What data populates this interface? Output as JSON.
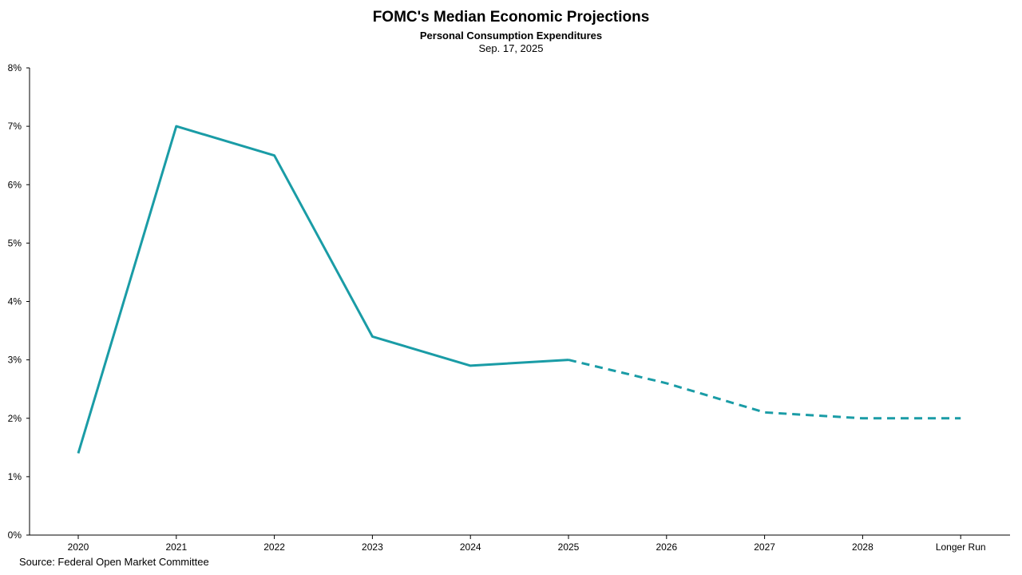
{
  "chart_data": {
    "type": "line",
    "title": "FOMC's Median Economic Projections",
    "subtitle": "Personal Consumption Expenditures",
    "date": "Sep. 17, 2025",
    "source": "Source: Federal Open Market Committee",
    "categories": [
      "2020",
      "2021",
      "2022",
      "2023",
      "2024",
      "2025",
      "2026",
      "2027",
      "2028",
      "Longer Run"
    ],
    "series": [
      {
        "values": [
          1.4,
          7.0,
          6.5,
          3.4,
          2.9,
          3.0,
          2.6,
          2.1,
          2.0,
          2.0
        ],
        "actual_through": "2025",
        "projected_from": "2025",
        "color": "#1a9ca6"
      }
    ],
    "ylim": [
      0,
      8
    ],
    "yticks": [
      0,
      1,
      2,
      3,
      4,
      5,
      6,
      7,
      8
    ],
    "ytick_labels": [
      "0%",
      "1%",
      "2%",
      "3%",
      "4%",
      "5%",
      "6%",
      "7%",
      "8%"
    ],
    "grid": false,
    "legend": "none"
  }
}
